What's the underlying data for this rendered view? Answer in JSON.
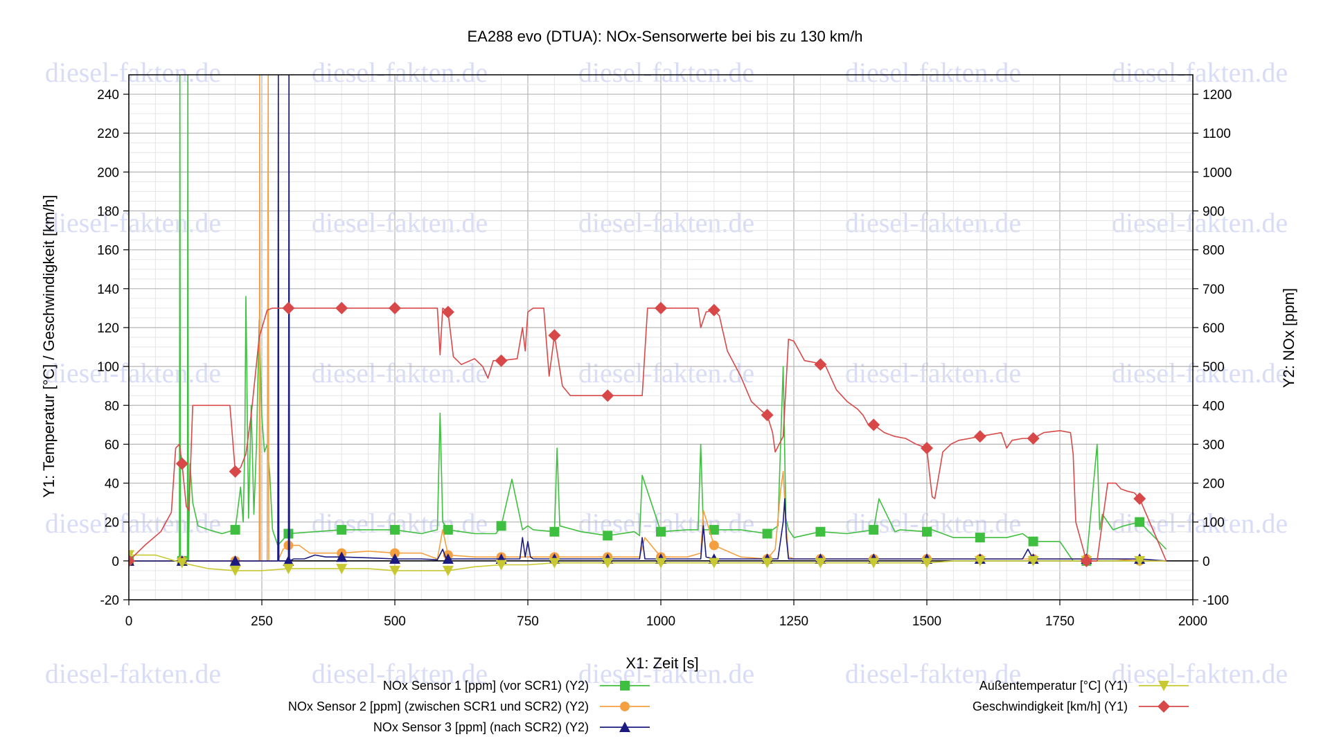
{
  "watermark_text": "diesel-fakten.de",
  "chart_data": {
    "type": "line",
    "title": "EA288 evo (DTUA): NOx-Sensorwerte bei bis zu 130 km/h",
    "xlabel": "X1: Zeit [s]",
    "y1label": "Y1: Temperatur [°C] / Geschwindigkeit [km/h]",
    "y2label": "Y2: NOx [ppm]",
    "xlim": [
      0,
      2000
    ],
    "y1lim": [
      -20,
      250
    ],
    "y2lim": [
      -100,
      1250
    ],
    "x_ticks": [
      "0",
      "250",
      "500",
      "750",
      "1000",
      "1250",
      "1500",
      "1750",
      "2000"
    ],
    "y1_ticks": [
      "-20",
      "0",
      "20",
      "40",
      "60",
      "80",
      "100",
      "120",
      "140",
      "160",
      "180",
      "200",
      "220",
      "240"
    ],
    "y2_ticks": [
      "-100",
      "0",
      "100",
      "200",
      "300",
      "400",
      "500",
      "600",
      "700",
      "800",
      "900",
      "1000",
      "1100",
      "1200"
    ],
    "grid": true,
    "legend": "bottom",
    "series": [
      {
        "name": "NOx Sensor 1 [ppm] (vor SCR1) (Y2)",
        "axis": "y2",
        "color": "#3fbf3f",
        "marker": "square",
        "x": [
          0,
          40,
          80,
          95,
          96,
          97,
          100,
          110,
          111,
          112,
          115,
          120,
          130,
          150,
          175,
          200,
          210,
          215,
          218,
          220,
          225,
          230,
          235,
          240,
          245,
          250,
          255,
          260,
          265,
          270,
          280,
          300,
          350,
          400,
          450,
          500,
          550,
          580,
          585,
          590,
          600,
          625,
          650,
          690,
          700,
          720,
          740,
          750,
          760,
          800,
          805,
          810,
          850,
          900,
          950,
          960,
          965,
          1000,
          1050,
          1070,
          1075,
          1080,
          1100,
          1150,
          1200,
          1220,
          1230,
          1235,
          1240,
          1250,
          1300,
          1350,
          1400,
          1410,
          1440,
          1450,
          1500,
          1510,
          1550,
          1600,
          1650,
          1680,
          1700,
          1750,
          1775,
          1790,
          1800,
          1820,
          1825,
          1830,
          1850,
          1870,
          1900,
          1950
        ],
        "y": [
          0,
          0,
          0,
          0,
          1250,
          0,
          0,
          0,
          1250,
          0,
          250,
          150,
          90,
          80,
          70,
          80,
          190,
          100,
          300,
          680,
          110,
          400,
          120,
          300,
          620,
          370,
          280,
          300,
          220,
          80,
          40,
          70,
          75,
          80,
          80,
          80,
          70,
          80,
          380,
          100,
          80,
          75,
          70,
          70,
          90,
          210,
          80,
          90,
          80,
          75,
          290,
          90,
          75,
          65,
          75,
          65,
          220,
          75,
          80,
          80,
          300,
          80,
          80,
          80,
          70,
          90,
          500,
          110,
          80,
          60,
          75,
          70,
          80,
          160,
          75,
          80,
          75,
          80,
          60,
          60,
          60,
          70,
          50,
          50,
          0,
          0,
          0,
          300,
          80,
          120,
          80,
          90,
          100,
          30
        ]
      },
      {
        "name": "NOx Sensor 2 [ppm] (zwischen SCR1 und SCR2) (Y2)",
        "axis": "y2",
        "color": "#f5a040",
        "marker": "circle",
        "x": [
          0,
          200,
          240,
          245,
          246,
          247,
          250,
          260,
          262,
          263,
          264,
          265,
          270,
          280,
          290,
          300,
          320,
          340,
          360,
          400,
          450,
          500,
          550,
          580,
          590,
          600,
          650,
          700,
          750,
          800,
          850,
          900,
          950,
          960,
          970,
          1000,
          1050,
          1075,
          1080,
          1100,
          1150,
          1200,
          1215,
          1225,
          1230,
          1235,
          1240,
          1250,
          1300,
          1350,
          1400,
          1450,
          1500,
          1550,
          1600,
          1650,
          1700,
          1750,
          1800,
          1850,
          1900,
          1950
        ],
        "y": [
          0,
          0,
          0,
          0,
          1250,
          0,
          0,
          0,
          1250,
          0,
          0,
          0,
          0,
          0,
          30,
          40,
          40,
          20,
          20,
          20,
          25,
          20,
          20,
          5,
          80,
          15,
          10,
          10,
          10,
          10,
          10,
          10,
          10,
          10,
          60,
          10,
          10,
          20,
          130,
          40,
          10,
          5,
          30,
          180,
          230,
          100,
          10,
          5,
          5,
          5,
          5,
          5,
          5,
          5,
          5,
          5,
          5,
          5,
          5,
          5,
          0,
          0
        ]
      },
      {
        "name": "NOx Sensor 3 [ppm] (nach SCR2) (Y2)",
        "axis": "y2",
        "color": "#1a1a80",
        "marker": "triangle",
        "x": [
          0,
          270,
          280,
          281,
          282,
          290,
          300,
          301,
          302,
          310,
          330,
          350,
          370,
          400,
          450,
          500,
          550,
          580,
          590,
          595,
          600,
          650,
          700,
          735,
          740,
          745,
          750,
          755,
          760,
          800,
          850,
          900,
          950,
          960,
          965,
          970,
          1000,
          1050,
          1075,
          1080,
          1085,
          1100,
          1150,
          1200,
          1220,
          1230,
          1233,
          1236,
          1240,
          1250,
          1300,
          1350,
          1400,
          1450,
          1500,
          1550,
          1600,
          1650,
          1680,
          1690,
          1700,
          1750,
          1800,
          1850,
          1900,
          1950
        ],
        "y": [
          0,
          0,
          0,
          1250,
          0,
          0,
          0,
          1250,
          0,
          5,
          5,
          15,
          10,
          10,
          8,
          5,
          5,
          3,
          30,
          10,
          5,
          5,
          5,
          5,
          60,
          10,
          50,
          10,
          5,
          5,
          5,
          5,
          5,
          5,
          60,
          5,
          5,
          5,
          5,
          90,
          10,
          5,
          5,
          5,
          5,
          100,
          160,
          60,
          5,
          5,
          5,
          5,
          5,
          5,
          5,
          5,
          5,
          5,
          5,
          30,
          5,
          5,
          5,
          5,
          5,
          0
        ]
      },
      {
        "name": "Außentemperatur [°C] (Y1)",
        "axis": "y1",
        "color": "#c8c832",
        "marker": "triangle-down",
        "x": [
          0,
          50,
          100,
          150,
          200,
          250,
          300,
          350,
          400,
          450,
          500,
          550,
          600,
          650,
          700,
          750,
          800,
          850,
          900,
          950,
          1000,
          1050,
          1100,
          1150,
          1200,
          1250,
          1300,
          1350,
          1400,
          1450,
          1500,
          1550,
          1600,
          1650,
          1700,
          1750,
          1800,
          1850,
          1900,
          1950
        ],
        "y": [
          3,
          3,
          -1,
          -4,
          -5,
          -5,
          -4,
          -4,
          -4,
          -4,
          -5,
          -5,
          -5,
          -3,
          -2,
          -2,
          -1,
          -1,
          -1,
          -1,
          -1,
          -1,
          -1,
          -1,
          -1,
          -1,
          -1,
          -1,
          -1,
          -1,
          -1,
          0,
          0,
          0,
          0,
          0,
          0,
          0,
          0,
          0
        ]
      },
      {
        "name": "Geschwindigkeit [km/h] (Y1)",
        "axis": "y1",
        "color": "#d84848",
        "marker": "diamond",
        "x": [
          0,
          30,
          60,
          80,
          88,
          95,
          100,
          108,
          113,
          120,
          130,
          150,
          170,
          190,
          200,
          210,
          220,
          230,
          245,
          260,
          270,
          290,
          300,
          400,
          500,
          580,
          585,
          590,
          600,
          610,
          625,
          650,
          665,
          675,
          685,
          700,
          730,
          740,
          745,
          750,
          760,
          780,
          790,
          800,
          815,
          830,
          900,
          965,
          975,
          1000,
          1070,
          1075,
          1085,
          1100,
          1110,
          1125,
          1150,
          1170,
          1190,
          1200,
          1210,
          1215,
          1230,
          1240,
          1250,
          1270,
          1290,
          1310,
          1330,
          1350,
          1370,
          1380,
          1390,
          1400,
          1420,
          1440,
          1460,
          1480,
          1500,
          1505,
          1510,
          1515,
          1530,
          1545,
          1560,
          1580,
          1600,
          1640,
          1650,
          1660,
          1680,
          1700,
          1720,
          1750,
          1770,
          1775,
          1780,
          1800,
          1820,
          1830,
          1840,
          1855,
          1865,
          1875,
          1890,
          1900,
          1950
        ],
        "y": [
          0,
          8,
          15,
          25,
          58,
          60,
          50,
          28,
          26,
          80,
          80,
          80,
          80,
          80,
          46,
          48,
          55,
          75,
          115,
          129,
          130,
          130,
          130,
          130,
          130,
          130,
          106,
          130,
          128,
          105,
          101,
          104,
          100,
          94,
          103,
          103,
          104,
          120,
          108,
          128,
          130,
          130,
          95,
          116,
          90,
          85,
          85,
          85,
          130,
          130,
          130,
          120,
          128,
          129,
          126,
          108,
          95,
          82,
          77,
          75,
          66,
          56,
          64,
          114,
          113,
          103,
          102,
          100,
          88,
          82,
          78,
          75,
          70,
          70,
          66,
          64,
          63,
          60,
          58,
          45,
          33,
          32,
          56,
          60,
          62,
          63,
          64,
          66,
          58,
          62,
          63,
          63,
          66,
          67,
          66,
          55,
          20,
          0,
          0,
          20,
          40,
          40,
          37,
          36,
          35,
          32,
          0
        ]
      }
    ]
  },
  "legend": {
    "left": [
      "NOx Sensor 1 [ppm] (vor SCR1) (Y2)",
      "NOx Sensor 2 [ppm] (zwischen SCR1 und SCR2) (Y2)",
      "NOx Sensor 3 [ppm] (nach SCR2) (Y2)"
    ],
    "right": [
      "Außentemperatur [°C] (Y1)",
      "Geschwindigkeit [km/h] (Y1)"
    ]
  }
}
